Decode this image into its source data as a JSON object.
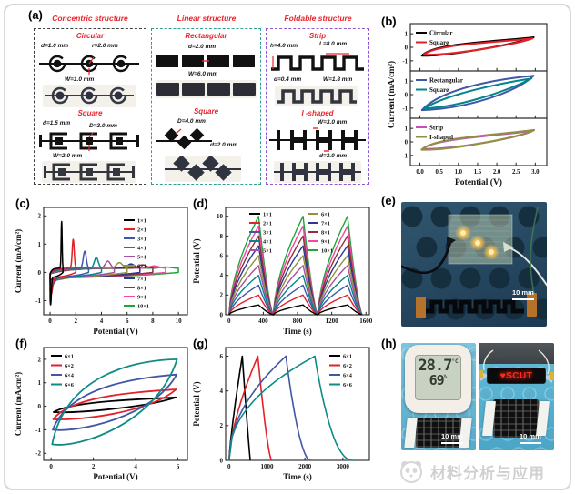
{
  "panels": {
    "a": {
      "label": "(a)"
    },
    "b": {
      "label": "(b)"
    },
    "c": {
      "label": "(c)"
    },
    "d": {
      "label": "(d)"
    },
    "e": {
      "label": "(e)"
    },
    "f": {
      "label": "(f)"
    },
    "g": {
      "label": "(g)"
    },
    "h": {
      "label": "(h)"
    }
  },
  "panel_a": {
    "sections": [
      {
        "title": "Concentric structure",
        "items": [
          {
            "name": "Circular",
            "dims": {
              "d": "d=1.0 mm",
              "r": "r=2.0 mm",
              "w": "W=1.0 mm"
            }
          },
          {
            "name": "Square",
            "dims": {
              "d": "d=1.5 mm",
              "D": "D=3.0 mm",
              "w": "W=2.0 mm"
            }
          }
        ]
      },
      {
        "title": "Linear structure",
        "items": [
          {
            "name": "Rectangular",
            "dims": {
              "d": "d=2.0 mm",
              "w": "W=6.0 mm"
            }
          },
          {
            "name": "Square",
            "dims": {
              "D": "D=4.0 mm",
              "d": "d=2.0 mm"
            }
          }
        ]
      },
      {
        "title": "Foldable structure",
        "items": [
          {
            "name": "Strip",
            "dims": {
              "h": "h=4.0 mm",
              "L": "L=8.0 mm",
              "d": "d=0.4 mm",
              "w": "W=1.8 mm"
            }
          },
          {
            "name": "I -shaped",
            "dims": {
              "w": "W=3.0 mm",
              "d": "d=3.0 mm"
            }
          }
        ]
      }
    ]
  },
  "chart_data": [
    {
      "panel": "b",
      "type": "line",
      "subtype": "cv-stacked",
      "xlabel": "Potential (V)",
      "ylabel": "Current (mA/cm²)",
      "xlim": [
        -0.25,
        3.3
      ],
      "xticks": [
        0,
        0.5,
        1,
        1.5,
        2,
        2.5,
        3
      ],
      "legend_position": "top-left",
      "subplots": [
        {
          "ylim": [
            -1.75,
            1.75
          ],
          "yticks": [
            -1,
            0,
            1
          ],
          "series": [
            {
              "name": "Circular",
              "color": "#000000",
              "loop": {
                "v0": [
                  0.05,
                  -0.62
                ],
                "v1": [
                  2.96,
                  0.74
                ],
                "up": [
                  [
                    0.35,
                    0.3
                  ],
                  [
                    1.8,
                    0.38
                  ]
                ],
                "dn": [
                  [
                    2.6,
                    0.3
                  ],
                  [
                    0.8,
                    -0.66
                  ]
                ]
              }
            },
            {
              "name": "Square",
              "color": "#e32128",
              "loop": {
                "v0": [
                  0.1,
                  -0.55
                ],
                "v1": [
                  2.93,
                  0.66
                ],
                "up": [
                  [
                    0.4,
                    0.22
                  ],
                  [
                    1.8,
                    0.3
                  ]
                ],
                "dn": [
                  [
                    2.55,
                    0.24
                  ],
                  [
                    0.85,
                    -0.59
                  ]
                ]
              }
            }
          ]
        },
        {
          "ylim": [
            -1.75,
            1.75
          ],
          "yticks": [
            -1,
            0,
            1
          ],
          "series": [
            {
              "name": "Rectangular",
              "color": "#4157a6",
              "loop": {
                "v0": [
                  0.05,
                  -1.15
                ],
                "v1": [
                  2.96,
                  1.4
                ],
                "up": [
                  [
                    0.5,
                    0.3
                  ],
                  [
                    1.8,
                    1.1
                  ]
                ],
                "dn": [
                  [
                    2.5,
                    0.15
                  ],
                  [
                    1.2,
                    -1.05
                  ]
                ]
              }
            },
            {
              "name": "Square",
              "color": "#00868b",
              "loop": {
                "v0": [
                  0.12,
                  -1.02
                ],
                "v1": [
                  2.9,
                  1.2
                ],
                "up": [
                  [
                    0.65,
                    0.0
                  ],
                  [
                    2.1,
                    0.85
                  ]
                ],
                "dn": [
                  [
                    2.3,
                    0.3
                  ],
                  [
                    1.05,
                    -0.92
                  ]
                ]
              }
            }
          ]
        },
        {
          "ylim": [
            -1.75,
            1.75
          ],
          "yticks": [
            -1,
            0,
            1
          ],
          "series": [
            {
              "name": "Strip",
              "color": "#c44fc0",
              "loop": {
                "v0": [
                  0.07,
                  -0.52
                ],
                "v1": [
                  2.94,
                  0.82
                ],
                "up": [
                  [
                    0.37,
                    0.24
                  ],
                  [
                    1.85,
                    0.4
                  ]
                ],
                "dn": [
                  [
                    2.6,
                    0.3
                  ],
                  [
                    0.85,
                    -0.56
                  ]
                ]
              }
            },
            {
              "name": "I-shaped",
              "color": "#8f9140",
              "loop": {
                "v0": [
                  0.04,
                  -0.58
                ],
                "v1": [
                  2.97,
                  0.88
                ],
                "up": [
                  [
                    0.33,
                    0.3
                  ],
                  [
                    1.85,
                    0.47
                  ]
                ],
                "dn": [
                  [
                    2.63,
                    0.35
                  ],
                  [
                    0.82,
                    -0.63
                  ]
                ]
              }
            }
          ]
        }
      ]
    },
    {
      "panel": "c",
      "type": "line",
      "subtype": "cv-spike",
      "xlabel": "Potential (V)",
      "ylabel": "Current (mA/cm²)",
      "xlim": [
        -0.5,
        10.7
      ],
      "xticks": [
        0,
        2,
        4,
        6,
        8,
        10
      ],
      "ylim": [
        -1.5,
        2.3
      ],
      "yticks": [
        -1,
        0,
        1,
        2
      ],
      "legend_position": "right, two groups",
      "series": [
        {
          "name": "1×1",
          "color": "#000000",
          "span": 1,
          "peak": 1.85,
          "dip": 1.18
        },
        {
          "name": "2×1",
          "color": "#e32128",
          "span": 2,
          "peak": 1.22,
          "dip": 0.82
        },
        {
          "name": "3×1",
          "color": "#4157a6",
          "span": 3,
          "peak": 0.8,
          "dip": 0.55
        },
        {
          "name": "4×1",
          "color": "#00868b",
          "span": 4,
          "peak": 0.58,
          "dip": 0.45
        },
        {
          "name": "5×1",
          "color": "#a9509e",
          "span": 5,
          "peak": 0.45,
          "dip": 0.38
        },
        {
          "name": "6×1",
          "color": "#8f9140",
          "span": 6,
          "peak": 0.4,
          "dip": 0.33
        },
        {
          "name": "7×1",
          "color": "#2c3792",
          "span": 7,
          "peak": 0.35,
          "dip": 0.3
        },
        {
          "name": "8×1",
          "color": "#8e3039",
          "span": 8,
          "peak": 0.32,
          "dip": 0.28
        },
        {
          "name": "9×1",
          "color": "#f446a1",
          "span": 9,
          "peak": 0.28,
          "dip": 0.27
        },
        {
          "name": "10×1",
          "color": "#1ea63c",
          "span": 10,
          "peak": 0.24,
          "dip": 0.3
        }
      ]
    },
    {
      "panel": "d",
      "type": "line",
      "subtype": "gcd-cycles",
      "xlabel": "Time (s)",
      "ylabel": "Potential (V)",
      "xlim": [
        -40,
        1640
      ],
      "xticks": [
        0,
        400,
        800,
        1200,
        1600
      ],
      "ylim": [
        0,
        10.9
      ],
      "yticks": [
        0,
        2,
        4,
        6,
        8,
        10
      ],
      "cycles": 3,
      "cycle_period": 520,
      "charge_time": 345,
      "legend_position": "top, two columns",
      "series": [
        {
          "name": "1×1",
          "color": "#000000",
          "vmax": 1
        },
        {
          "name": "2×1",
          "color": "#e32128",
          "vmax": 2
        },
        {
          "name": "3×1",
          "color": "#4157a6",
          "vmax": 3
        },
        {
          "name": "4×1",
          "color": "#00868b",
          "vmax": 4
        },
        {
          "name": "5×1",
          "color": "#a9509e",
          "vmax": 5
        },
        {
          "name": "6×1",
          "color": "#8f9140",
          "vmax": 6
        },
        {
          "name": "7×1",
          "color": "#2c3792",
          "vmax": 7
        },
        {
          "name": "8×1",
          "color": "#8e3039",
          "vmax": 8
        },
        {
          "name": "9×1",
          "color": "#f446a1",
          "vmax": 9
        },
        {
          "name": "10×1",
          "color": "#1ea63c",
          "vmax": 10
        }
      ]
    },
    {
      "panel": "f",
      "type": "line",
      "subtype": "cv-lens",
      "xlabel": "Potential (V)",
      "ylabel": "Current (mA/cm²)",
      "xlim": [
        -0.35,
        6.45
      ],
      "xticks": [
        0,
        2,
        4,
        6
      ],
      "ylim": [
        -2.3,
        2.5
      ],
      "yticks": [
        -2,
        -1,
        0,
        1,
        2
      ],
      "legend_position": "top-left",
      "series": [
        {
          "name": "6×1",
          "color": "#000000",
          "loop": {
            "v0": [
              0.12,
              -0.25
            ],
            "v1": [
              5.9,
              0.38
            ],
            "up": [
              [
                1.0,
                0.22
              ],
              [
                4.3,
                0.3
              ]
            ],
            "dn": [
              [
                4.5,
                -0.05
              ],
              [
                1.2,
                -0.3
              ]
            ]
          }
        },
        {
          "name": "6×2",
          "color": "#e32128",
          "loop": {
            "v0": [
              0.1,
              -0.55
            ],
            "v1": [
              5.92,
              0.72
            ],
            "up": [
              [
                1.0,
                0.48
              ],
              [
                4.3,
                0.62
              ]
            ],
            "dn": [
              [
                4.6,
                -0.3
              ],
              [
                1.2,
                -0.62
              ]
            ]
          }
        },
        {
          "name": "6×4",
          "color": "#4157a6",
          "loop": {
            "v0": [
              0.08,
              -1.0
            ],
            "v1": [
              5.94,
              1.35
            ],
            "up": [
              [
                0.9,
                0.9
              ],
              [
                4.2,
                1.22
              ]
            ],
            "dn": [
              [
                4.8,
                -0.5
              ],
              [
                1.2,
                -1.12
              ]
            ]
          }
        },
        {
          "name": "6×6",
          "color": "#0d8c85",
          "loop": {
            "v0": [
              0.05,
              -1.62
            ],
            "v1": [
              5.96,
              2.0
            ],
            "up": [
              [
                0.7,
                1.35
              ],
              [
                3.9,
                1.95
              ]
            ],
            "dn": [
              [
                5.0,
                -0.75
              ],
              [
                1.3,
                -1.8
              ]
            ]
          }
        }
      ]
    },
    {
      "panel": "g",
      "type": "line",
      "subtype": "gcd-single",
      "xlabel": "Time (s)",
      "ylabel": "Potential (V)",
      "xlim": [
        -90,
        3700
      ],
      "xticks": [
        0,
        1000,
        2000,
        3000
      ],
      "ylim": [
        0,
        6.5
      ],
      "yticks": [
        0,
        2,
        4,
        6
      ],
      "vmax": 6,
      "legend_position": "top-right",
      "series": [
        {
          "name": "6×1",
          "color": "#000000",
          "t_charge": 350,
          "t_end": 560,
          "rise_exp": 0.8,
          "fall_exp": 1.1
        },
        {
          "name": "6×2",
          "color": "#e32128",
          "t_charge": 760,
          "t_end": 1120,
          "rise_exp": 0.65,
          "fall_exp": 1.4
        },
        {
          "name": "6×4",
          "color": "#4157a6",
          "t_charge": 1500,
          "t_end": 2140,
          "rise_exp": 0.5,
          "fall_exp": 1.8
        },
        {
          "name": "6×6",
          "color": "#0d8c85",
          "t_charge": 2260,
          "t_end": 3270,
          "rise_exp": 0.45,
          "fall_exp": 2.2
        }
      ]
    }
  ],
  "panel_e": {
    "scale_bar": "10 mm"
  },
  "panel_h": {
    "thermometer": {
      "temperature": "28.7",
      "temp_unit": "°C",
      "humidity": "69",
      "humidity_unit": "%"
    },
    "led_text": "♥SCUT",
    "scale_bar_left": "10 mm",
    "scale_bar_right": "10 mm"
  },
  "watermark": {
    "text": "材料分析与应用"
  }
}
